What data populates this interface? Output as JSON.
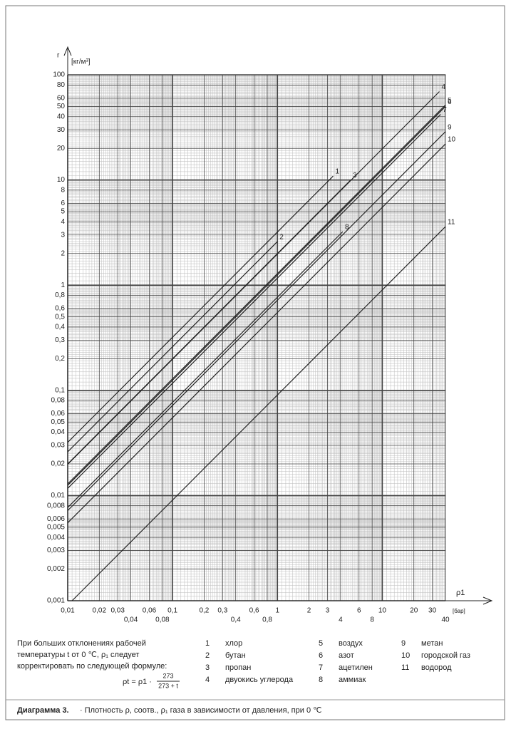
{
  "chart_data": {
    "type": "line",
    "y_label": "r",
    "y_unit": "[кг/м³]",
    "x_label": "ρ1",
    "x_unit": "[бар]",
    "log_x": true,
    "log_y": true,
    "grid": true,
    "color": "#222222",
    "xlim": [
      0.01,
      40
    ],
    "ylim": [
      0.001,
      100
    ],
    "xticks": [
      {
        "value": 0.01,
        "label": "0,01"
      },
      {
        "value": 0.02,
        "label": "0,02"
      },
      {
        "value": 0.03,
        "label": "0,03"
      },
      {
        "value": 0.04,
        "label": "0,04"
      },
      {
        "value": 0.06,
        "label": "0,06"
      },
      {
        "value": 0.08,
        "label": "0,08"
      },
      {
        "value": 0.1,
        "label": "0,1"
      },
      {
        "value": 0.2,
        "label": "0,2"
      },
      {
        "value": 0.3,
        "label": "0,3"
      },
      {
        "value": 0.4,
        "label": "0,4"
      },
      {
        "value": 0.6,
        "label": "0,6"
      },
      {
        "value": 0.8,
        "label": "0,8"
      },
      1,
      2,
      3,
      4,
      6,
      8,
      10,
      20,
      30,
      40
    ],
    "yticks": [
      {
        "value": 0.001,
        "label": "0,001"
      },
      {
        "value": 0.002,
        "label": "0,002"
      },
      {
        "value": 0.003,
        "label": "0,003"
      },
      {
        "value": 0.004,
        "label": "0,004"
      },
      {
        "value": 0.005,
        "label": "0,005"
      },
      {
        "value": 0.006,
        "label": "0,006"
      },
      {
        "value": 0.008,
        "label": "0,008"
      },
      {
        "value": 0.01,
        "label": "0,01"
      },
      {
        "value": 0.02,
        "label": "0,02"
      },
      {
        "value": 0.03,
        "label": "0,03"
      },
      {
        "value": 0.04,
        "label": "0,04"
      },
      {
        "value": 0.05,
        "label": "0,05"
      },
      {
        "value": 0.06,
        "label": "0,06"
      },
      {
        "value": 0.08,
        "label": "0,08"
      },
      {
        "value": 0.1,
        "label": "0,1"
      },
      {
        "value": 0.2,
        "label": "0,2"
      },
      {
        "value": 0.3,
        "label": "0,3"
      },
      {
        "value": 0.4,
        "label": "0,4"
      },
      {
        "value": 0.5,
        "label": "0,5"
      },
      {
        "value": 0.6,
        "label": "0,6"
      },
      {
        "value": 0.8,
        "label": "0,8"
      },
      1,
      2,
      3,
      4,
      5,
      6,
      8,
      10,
      20,
      30,
      40,
      50,
      60,
      80,
      100
    ],
    "series": [
      {
        "label": "1",
        "name": "хлор",
        "x": [
          0.01,
          3.4
        ],
        "values": [
          0.032,
          10.9
        ]
      },
      {
        "label": "2",
        "name": "бутан",
        "x": [
          0.01,
          1.0
        ],
        "values": [
          0.026,
          2.6
        ]
      },
      {
        "label": "3",
        "name": "пропан",
        "x": [
          0.01,
          5
        ],
        "values": [
          0.02,
          10
        ]
      },
      {
        "label": "4",
        "name": "двуокись углерода",
        "x": [
          0.01,
          35
        ],
        "values": [
          0.0198,
          69.3
        ]
      },
      {
        "label": "5",
        "name": "воздух",
        "x": [
          0.01,
          40
        ],
        "values": [
          0.0129,
          51.6
        ]
      },
      {
        "label": "6",
        "name": "азот",
        "x": [
          0.01,
          40
        ],
        "values": [
          0.0125,
          50
        ]
      },
      {
        "label": "7",
        "name": "ацетилен",
        "x": [
          0.01,
          36
        ],
        "values": [
          0.0117,
          42.1
        ]
      },
      {
        "label": "8",
        "name": "аммиак",
        "x": [
          0.01,
          4.2
        ],
        "values": [
          0.0077,
          3.23
        ]
      },
      {
        "label": "9",
        "name": "метан",
        "x": [
          0.01,
          40
        ],
        "values": [
          0.0072,
          28.8
        ]
      },
      {
        "label": "10",
        "name": "городской газ",
        "x": [
          0.01,
          40
        ],
        "values": [
          0.0055,
          22
        ]
      },
      {
        "label": "11",
        "name": "водород",
        "x": [
          0.011,
          40
        ],
        "values": [
          0.001,
          3.6
        ]
      }
    ]
  },
  "note": [
    "При больших отклонениях рабочей",
    "температуры t от 0 ℃,  ρ₁ следует",
    "корректировать  по следующей формуле:"
  ],
  "formula": {
    "lhs": "ρt =  ρ1 ·",
    "num": "273",
    "den": "273 + t"
  },
  "caption": {
    "bold": "Диаграмма 3.",
    "text": "· Плотность ρ, соотв., ρ₁ газа в зависимости от давления, при 0 ℃"
  }
}
